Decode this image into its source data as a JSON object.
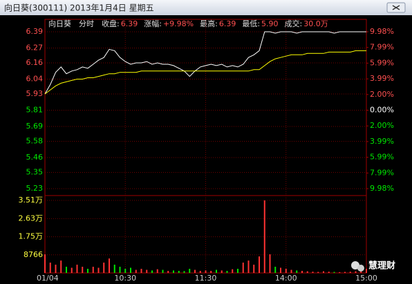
{
  "chart_data": {
    "type": "intraday",
    "title": "向日葵(300111) 2013年1月4日 星期五",
    "info": [
      {
        "label": "向日葵"
      },
      {
        "label": "分时"
      },
      {
        "label": "收盘:",
        "value": "6.39"
      },
      {
        "label": "涨幅:",
        "value": "+9.98%"
      },
      {
        "label": "最高:",
        "value": "6.39"
      },
      {
        "label": "最低:",
        "value": "5.90"
      },
      {
        "label": "成交:",
        "value": "30.0万"
      }
    ],
    "watermark": "慧理财",
    "xlim": [
      0,
      60
    ],
    "xticks": [
      {
        "value": 0,
        "label": "01/04"
      },
      {
        "value": 15,
        "label": "10:30"
      },
      {
        "value": 30,
        "label": "11:30"
      },
      {
        "value": 45,
        "label": "14:00"
      },
      {
        "value": 60,
        "label": "15:00"
      }
    ],
    "ylim": [
      5.23,
      6.39
    ],
    "yticks": [
      6.39,
      6.27,
      6.16,
      6.04,
      5.93,
      5.81,
      5.69,
      5.58,
      5.46,
      5.35,
      5.23
    ],
    "y2lim": [
      -9.98,
      9.98
    ],
    "y2ticks": [
      {
        "value": 9.98,
        "label": "9.98%"
      },
      {
        "value": 7.99,
        "label": "7.99%"
      },
      {
        "value": 5.99,
        "label": "5.99%"
      },
      {
        "value": 3.99,
        "label": "3.99%"
      },
      {
        "value": 2,
        "label": "2.00%"
      },
      {
        "value": 0,
        "label": "0.00%"
      },
      {
        "value": -2,
        "label": "2.00%"
      },
      {
        "value": -3.99,
        "label": "3.99%"
      },
      {
        "value": -5.99,
        "label": "5.99%"
      },
      {
        "value": -7.99,
        "label": "7.99%"
      },
      {
        "value": -9.98,
        "label": "9.98%"
      }
    ],
    "series": [
      {
        "color": "#ffffff",
        "values": [
          5.93,
          6.0,
          6.09,
          6.13,
          6.08,
          6.1,
          6.11,
          6.13,
          6.12,
          6.15,
          6.18,
          6.2,
          6.26,
          6.25,
          6.2,
          6.17,
          6.15,
          6.16,
          6.16,
          6.17,
          6.15,
          6.16,
          6.15,
          6.15,
          6.14,
          6.12,
          6.1,
          6.06,
          6.1,
          6.13,
          6.14,
          6.15,
          6.14,
          6.15,
          6.13,
          6.14,
          6.13,
          6.15,
          6.2,
          6.22,
          6.25,
          6.39,
          6.39,
          6.38,
          6.39,
          6.39,
          6.39,
          6.38,
          6.39,
          6.39,
          6.39,
          6.39,
          6.39,
          6.39,
          6.38,
          6.39,
          6.39,
          6.39,
          6.39,
          6.39,
          6.39
        ]
      },
      {
        "color": "#ffff00",
        "values": [
          5.93,
          5.96,
          5.99,
          6.01,
          6.02,
          6.03,
          6.04,
          6.04,
          6.05,
          6.05,
          6.06,
          6.07,
          6.08,
          6.08,
          6.09,
          6.09,
          6.09,
          6.09,
          6.1,
          6.1,
          6.1,
          6.1,
          6.1,
          6.1,
          6.1,
          6.1,
          6.1,
          6.1,
          6.1,
          6.1,
          6.1,
          6.1,
          6.1,
          6.1,
          6.1,
          6.1,
          6.1,
          6.1,
          6.1,
          6.11,
          6.11,
          6.14,
          6.17,
          6.19,
          6.2,
          6.21,
          6.22,
          6.22,
          6.22,
          6.23,
          6.23,
          6.23,
          6.23,
          6.24,
          6.24,
          6.24,
          6.24,
          6.24,
          6.25,
          6.25,
          6.25
        ]
      }
    ],
    "volume": {
      "up_color": "#ff3232",
      "down_color": "#00e600",
      "ylim": [
        0,
        35100
      ],
      "yticks": [
        {
          "value": 35100,
          "label": "3.51万"
        },
        {
          "value": 26300,
          "label": "2.63万"
        },
        {
          "value": 17500,
          "label": "1.75万"
        },
        8766
      ],
      "values": [
        9000,
        5000,
        4000,
        6000,
        3000,
        2500,
        4000,
        3000,
        2000,
        3000,
        2500,
        5000,
        7000,
        4000,
        3000,
        2000,
        2500,
        1500,
        2000,
        1500,
        1200,
        1800,
        1500,
        1000,
        1200,
        1000,
        900,
        2000,
        1500,
        1000,
        1200,
        1000,
        1500,
        1200,
        1000,
        1800,
        2000,
        5000,
        6000,
        4000,
        8000,
        35100,
        9000,
        3000,
        2500,
        2000,
        1500,
        1200,
        1000,
        800,
        600,
        500,
        800,
        600,
        500,
        400,
        500,
        600,
        800,
        1000,
        2000
      ]
    }
  }
}
